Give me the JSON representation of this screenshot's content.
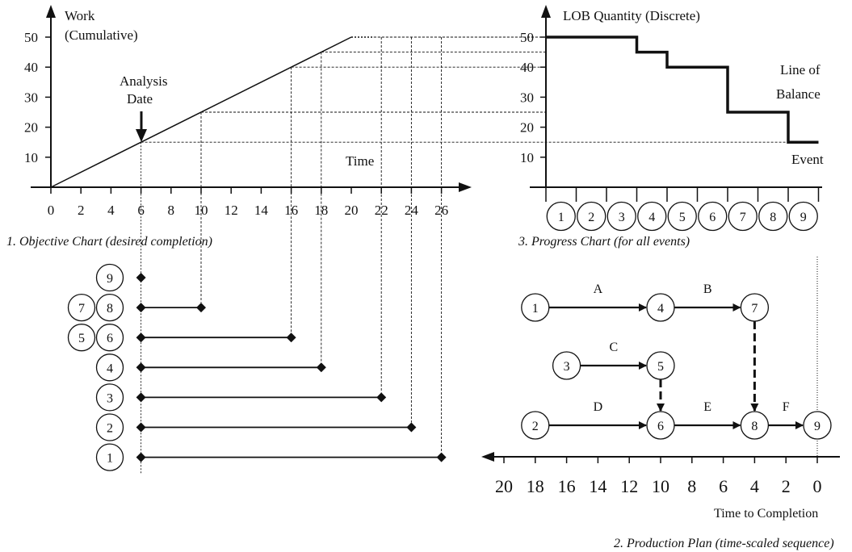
{
  "objective_chart": {
    "ylabel_line1": "Work",
    "ylabel_line2": "(Cumulative)",
    "xlabel": "Time",
    "yticks": [
      10,
      20,
      30,
      40,
      50
    ],
    "xticks": [
      0,
      2,
      4,
      6,
      8,
      10,
      12,
      14,
      16,
      18,
      20,
      22,
      24,
      26
    ],
    "line_points": [
      [
        0,
        0
      ],
      [
        20,
        50
      ]
    ],
    "plateau_end_x": 21.5,
    "analysis_label_line1": "Analysis",
    "analysis_label_line2": "Date",
    "analysis_x": 6,
    "caption": "1. Objective Chart (desired completion)"
  },
  "progress_chart": {
    "ylabel": "LOB Quantity (Discrete)",
    "yticks": [
      10,
      20,
      30,
      40,
      50
    ],
    "events": [
      "1",
      "2",
      "3",
      "4",
      "5",
      "6",
      "7",
      "8",
      "9"
    ],
    "lob_levels": [
      50,
      50,
      50,
      45,
      40,
      40,
      25,
      25,
      15
    ],
    "lob_label_line1": "Line of",
    "lob_label_line2": "Balance",
    "event_label": "Event",
    "caption": "3. Progress Chart (for all events)"
  },
  "bar_chart": {
    "rows": [
      {
        "left": "",
        "right": "9",
        "end_time": 6
      },
      {
        "left": "7",
        "right": "8",
        "end_time": 10
      },
      {
        "left": "5",
        "right": "6",
        "end_time": 16
      },
      {
        "left": "",
        "right": "4",
        "end_time": 18
      },
      {
        "left": "",
        "right": "3",
        "end_time": 22
      },
      {
        "left": "",
        "right": "2",
        "end_time": 24
      },
      {
        "left": "",
        "right": "1",
        "end_time": 26
      }
    ]
  },
  "production_plan": {
    "nodes": [
      {
        "id": "1",
        "t": 18,
        "row": 0
      },
      {
        "id": "4",
        "t": 10,
        "row": 0
      },
      {
        "id": "7",
        "t": 4,
        "row": 0
      },
      {
        "id": "3",
        "t": 16,
        "row": 1
      },
      {
        "id": "5",
        "t": 10,
        "row": 1
      },
      {
        "id": "2",
        "t": 18,
        "row": 2
      },
      {
        "id": "6",
        "t": 10,
        "row": 2
      },
      {
        "id": "8",
        "t": 4,
        "row": 2
      },
      {
        "id": "9",
        "t": 0,
        "row": 2
      }
    ],
    "activities": [
      {
        "from": "1",
        "to": "4",
        "label": "A"
      },
      {
        "from": "4",
        "to": "7",
        "label": "B"
      },
      {
        "from": "3",
        "to": "5",
        "label": "C"
      },
      {
        "from": "2",
        "to": "6",
        "label": "D"
      },
      {
        "from": "6",
        "to": "8",
        "label": "E"
      },
      {
        "from": "8",
        "to": "9",
        "label": "F"
      }
    ],
    "dependencies": [
      {
        "from": "7",
        "to": "8"
      },
      {
        "from": "5",
        "to": "6"
      }
    ],
    "axis_ticks": [
      20,
      18,
      16,
      14,
      12,
      10,
      8,
      6,
      4,
      2,
      0
    ],
    "axis_label": "Time to Completion",
    "caption": "2. Production Plan (time-scaled sequence)"
  }
}
